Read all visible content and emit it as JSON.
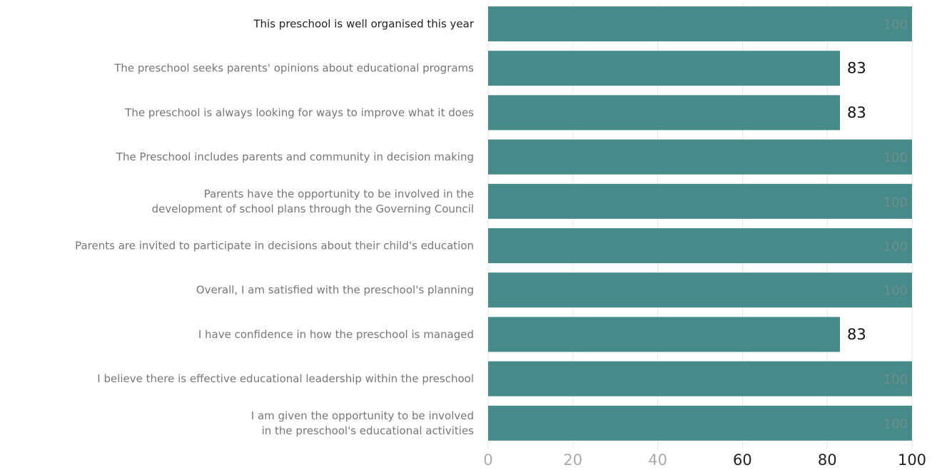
{
  "chart_data": {
    "type": "bar",
    "orientation": "horizontal",
    "categories": [
      [
        "This preschool is well organised this year"
      ],
      [
        "The preschool seeks parents' opinions about educational programs"
      ],
      [
        "The preschool is always looking for ways to improve what it does"
      ],
      [
        "The Preschool includes parents and community in decision making"
      ],
      [
        "Parents have the opportunity to be involved in the",
        "development of school plans through the Governing Council"
      ],
      [
        "Parents are invited to participate in decisions about their child's education"
      ],
      [
        "Overall, I am satisfied with the preschool's planning"
      ],
      [
        "I have confidence in how the preschool is managed"
      ],
      [
        "I believe there is effective educational leadership within the preschool"
      ],
      [
        "I am given the opportunity to be involved",
        "in the preschool's educational activities"
      ]
    ],
    "values": [
      100,
      83,
      83,
      100,
      100,
      100,
      100,
      83,
      100,
      100
    ],
    "xlim": [
      0,
      100
    ],
    "xticks": [
      0,
      20,
      40,
      60,
      80,
      100
    ],
    "grid": true,
    "bar_color": "#468a8a",
    "title": "",
    "xlabel": "",
    "ylabel": ""
  }
}
